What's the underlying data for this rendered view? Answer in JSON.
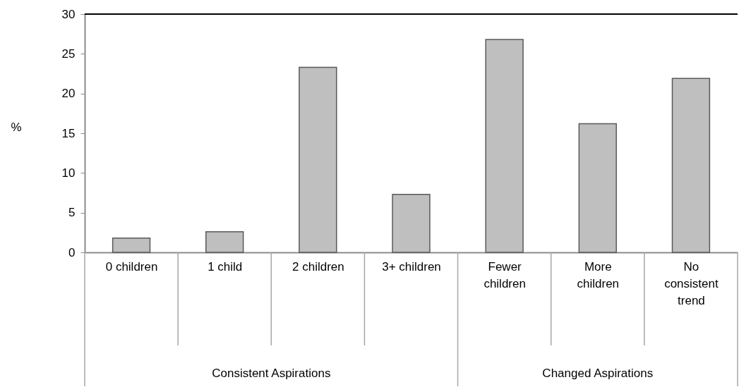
{
  "chart_data": {
    "type": "bar",
    "ylabel": "%",
    "categories": [
      "0 children",
      "1 child",
      "2 children",
      "3+ children",
      "Fewer children",
      "More children",
      "No consistent trend"
    ],
    "values": [
      1.8,
      2.6,
      23.3,
      7.3,
      26.8,
      16.2,
      21.9
    ],
    "color": "#bfbfbf",
    "ylim": [
      0,
      30
    ],
    "yticks": [
      0,
      5,
      10,
      15,
      20,
      25,
      30
    ],
    "grid": false,
    "annotations": [
      "Consistent Aspirations",
      "Changed Aspirations"
    ]
  }
}
